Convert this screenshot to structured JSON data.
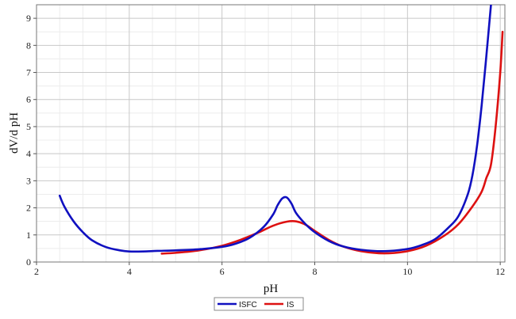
{
  "chart_data": {
    "type": "line",
    "title": "",
    "xlabel": "pH",
    "ylabel": "dV/d pH",
    "xlim": [
      2,
      12.1
    ],
    "ylim": [
      0,
      9.5
    ],
    "x_ticks": [
      "2",
      "4",
      "6",
      "8",
      "10",
      "12"
    ],
    "y_ticks": [
      "0",
      "1",
      "2",
      "3",
      "4",
      "5",
      "6",
      "7",
      "8",
      "9"
    ],
    "grid": true,
    "legend_position": "bottom-center",
    "series": [
      {
        "name": "ISFC",
        "color": "#1010c0",
        "x": [
          2.5,
          2.6,
          2.8,
          3.0,
          3.2,
          3.5,
          3.8,
          4.0,
          4.3,
          4.6,
          5.0,
          5.5,
          6.0,
          6.3,
          6.6,
          6.9,
          7.1,
          7.2,
          7.3,
          7.4,
          7.5,
          7.6,
          7.8,
          8.0,
          8.3,
          8.6,
          9.0,
          9.5,
          10.0,
          10.3,
          10.6,
          10.9,
          11.1,
          11.3,
          11.4,
          11.5,
          11.6,
          11.7,
          11.8
        ],
        "y": [
          2.45,
          2.05,
          1.5,
          1.1,
          0.8,
          0.55,
          0.43,
          0.39,
          0.39,
          0.41,
          0.43,
          0.47,
          0.56,
          0.68,
          0.9,
          1.3,
          1.75,
          2.1,
          2.35,
          2.38,
          2.15,
          1.8,
          1.4,
          1.1,
          0.78,
          0.58,
          0.45,
          0.4,
          0.48,
          0.62,
          0.85,
          1.3,
          1.7,
          2.5,
          3.2,
          4.3,
          5.8,
          7.6,
          9.5
        ]
      },
      {
        "name": "IS",
        "color": "#dd1111",
        "x": [
          4.7,
          5.0,
          5.5,
          6.0,
          6.4,
          6.8,
          7.1,
          7.4,
          7.6,
          7.8,
          8.0,
          8.3,
          8.6,
          9.0,
          9.5,
          10.0,
          10.4,
          10.8,
          11.1,
          11.4,
          11.6,
          11.7,
          11.8,
          11.9,
          12.0,
          12.05
        ],
        "y": [
          0.31,
          0.34,
          0.43,
          0.6,
          0.82,
          1.1,
          1.34,
          1.49,
          1.5,
          1.38,
          1.15,
          0.82,
          0.58,
          0.4,
          0.32,
          0.4,
          0.6,
          0.98,
          1.4,
          2.05,
          2.6,
          3.1,
          3.6,
          5.0,
          7.0,
          8.5
        ]
      }
    ]
  }
}
